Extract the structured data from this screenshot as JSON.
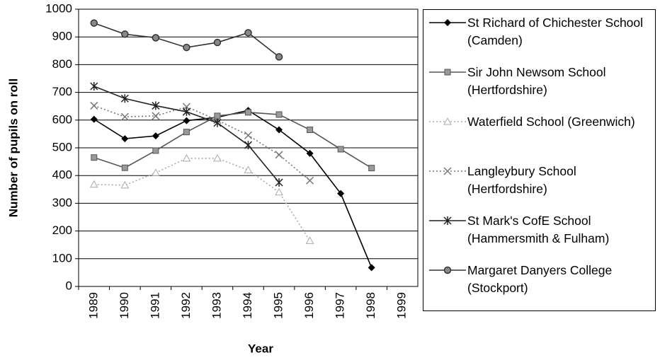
{
  "chart_data": {
    "type": "line",
    "x_label": "Year",
    "y_label": "Number of pupils on roll",
    "categories": [
      "1989",
      "1990",
      "1991",
      "1992",
      "1993",
      "1994",
      "1995",
      "1996",
      "1997",
      "1998",
      "1999"
    ],
    "ylim": [
      0,
      1000
    ],
    "yticks": [
      0,
      100,
      200,
      300,
      400,
      500,
      600,
      700,
      800,
      900,
      1000
    ],
    "grid": true,
    "series": [
      {
        "name": "St Richard of Chichester School (Camden)",
        "color": "#000000",
        "marker": "diamond",
        "dash": "solid",
        "values": [
          603,
          533,
          543,
          598,
          610,
          635,
          565,
          480,
          335,
          68,
          null
        ]
      },
      {
        "name": "Sir John Newsom School (Hertfordshire)",
        "color": "#555555",
        "marker": "square",
        "dash": "solid",
        "values": [
          465,
          428,
          490,
          557,
          615,
          628,
          620,
          565,
          495,
          427,
          null
        ]
      },
      {
        "name": "Waterfield School (Greenwich)",
        "color": "#aaaaaa",
        "marker": "triangle",
        "dash": "dotted",
        "values": [
          368,
          365,
          410,
          462,
          462,
          420,
          340,
          165,
          null,
          null,
          null
        ]
      },
      {
        "name": "Langleybury School (Hertfordshire)",
        "color": "#777777",
        "marker": "x",
        "dash": "dotted",
        "values": [
          652,
          612,
          615,
          648,
          600,
          545,
          475,
          382,
          null,
          null,
          null
        ]
      },
      {
        "name": "St Mark's CofE School (Hammersmith & Fulham)",
        "color": "#222222",
        "marker": "star",
        "dash": "solid",
        "values": [
          722,
          678,
          652,
          630,
          590,
          510,
          375,
          null,
          null,
          null,
          null
        ]
      },
      {
        "name": "Margaret Danyers College (Stockport)",
        "color": "#333333",
        "marker": "circle",
        "dash": "solid",
        "values": [
          950,
          910,
          897,
          862,
          880,
          915,
          828,
          null,
          null,
          null,
          null
        ]
      }
    ]
  }
}
